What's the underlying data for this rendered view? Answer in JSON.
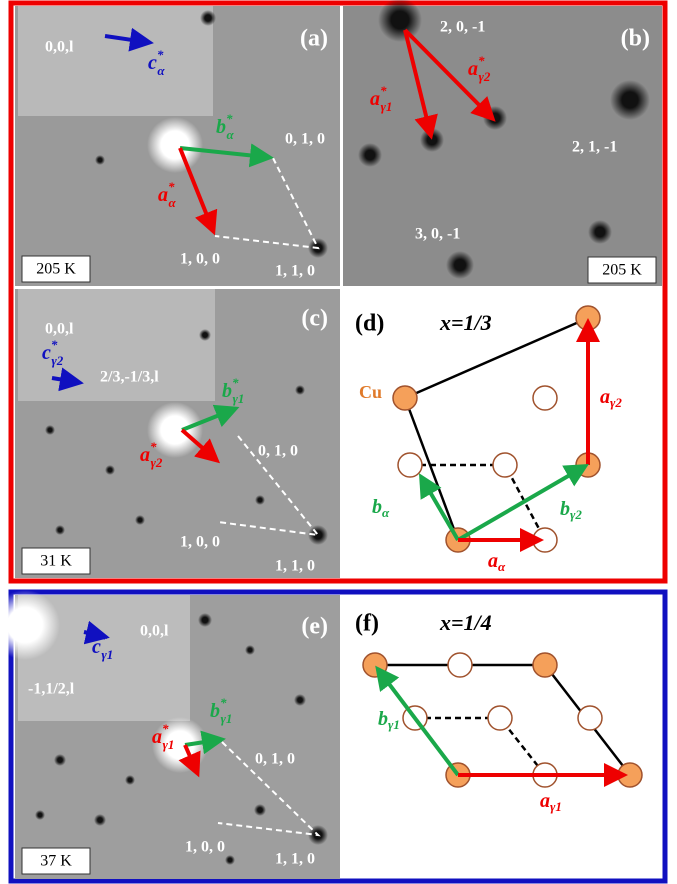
{
  "panels": {
    "a": {
      "label": "(a)",
      "temperature": "205 K",
      "inset": {
        "index": "0,0,l",
        "vector": {
          "base": "c",
          "sup": "*",
          "sub": "α"
        }
      },
      "spots": [
        "0, 1, 0",
        "1, 0, 0",
        "1, 1, 0"
      ],
      "vectors": [
        {
          "base": "b",
          "sup": "*",
          "sub": "α"
        },
        {
          "base": "a",
          "sup": "*",
          "sub": "α"
        }
      ]
    },
    "b": {
      "label": "(b)",
      "temperature": "205 K",
      "spots": [
        "2, 0, -1",
        "2, 1, -1",
        "3, 0, -1"
      ],
      "vectors": [
        {
          "base": "a",
          "sup": "*",
          "sub": "γ1"
        },
        {
          "base": "a",
          "sup": "*",
          "sub": "γ2"
        }
      ]
    },
    "c": {
      "label": "(c)",
      "temperature": "31 K",
      "inset": {
        "index": "0,0,l",
        "vector": {
          "base": "c",
          "sup": "*",
          "sub": "γ2"
        },
        "satellite": "2/3,-1/3,l"
      },
      "spots": [
        "0, 1, 0",
        "1, 0, 0",
        "1, 1, 0"
      ],
      "vectors": [
        {
          "base": "b",
          "sup": "*",
          "sub": "γ1"
        },
        {
          "base": "a",
          "sup": "*",
          "sub": "γ2"
        }
      ]
    },
    "d": {
      "label": "(d)",
      "composition": "x=1/3",
      "atom": "Cu",
      "vectors": [
        {
          "base": "a",
          "sub": "γ2"
        },
        {
          "base": "b",
          "sub": "α"
        },
        {
          "base": "b",
          "sub": "γ2"
        },
        {
          "base": "a",
          "sub": "α"
        }
      ]
    },
    "e": {
      "label": "(e)",
      "temperature": "37 K",
      "inset": {
        "index": "0,0,l",
        "vector": {
          "base": "c",
          "sup": "*",
          "sub": "γ1"
        },
        "satellite": "-1,1/2,l"
      },
      "spots": [
        "0, 1, 0",
        "1, 0, 0",
        "1, 1, 0"
      ],
      "vectors": [
        {
          "base": "b",
          "sup": "*",
          "sub": "γ1"
        },
        {
          "base": "a",
          "sup": "*",
          "sub": "γ1"
        }
      ]
    },
    "f": {
      "label": "(f)",
      "composition": "x=1/4",
      "vectors": [
        {
          "base": "b",
          "sub": "γ1"
        },
        {
          "base": "a",
          "sub": "γ1"
        }
      ]
    }
  }
}
